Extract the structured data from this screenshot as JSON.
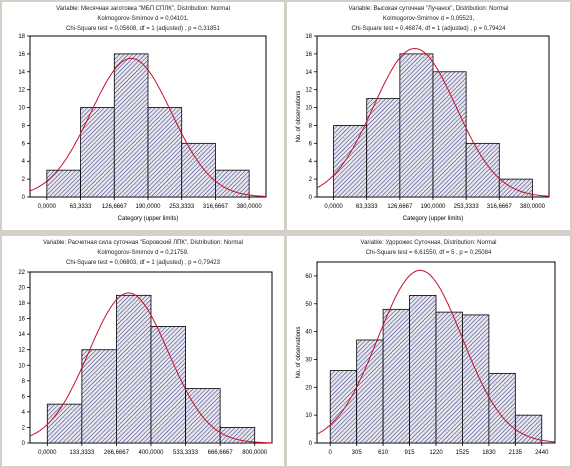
{
  "chart_data": [
    {
      "type": "bar",
      "title": "Variable: Месячная заготовка \"МБП СПЛК\", Distribution: Normal",
      "stats_lines": [
        "Kolmogorov-Smirnov d = 0,04101,",
        "Chi-Square test = 0,05608, df = 1 (adjusted) , p = 0,31851"
      ],
      "xlabel": "Category (upper limits)",
      "ylabel": "",
      "x_ticks": [
        "0,0000",
        "63,3333",
        "126,6667",
        "190,0000",
        "253,3333",
        "316,6667",
        "380,0000"
      ],
      "y_ticks": [
        0,
        2,
        4,
        6,
        8,
        10,
        12,
        14,
        16,
        18
      ],
      "ylim": [
        0,
        18
      ],
      "values": [
        3,
        10,
        16,
        10,
        6,
        3
      ],
      "normal_fit": {
        "mean": 3,
        "sd": 1.2,
        "peak": 15.5
      }
    },
    {
      "type": "bar",
      "title": "Variable: Высокая суточная \"Лучанск\", Distribution: Normal",
      "stats_lines": [
        "Kolmogorov-Smirnov d = 0,05523,",
        "Chi-Square test = 0,46874, df = 1 (adjusted) , p = 0,79424"
      ],
      "xlabel": "Category (upper limits)",
      "ylabel": "No. of observations",
      "x_ticks": [
        "0,0000",
        "63,3333",
        "126,6667",
        "190,0000",
        "253,3333",
        "316,6667",
        "380,0000"
      ],
      "y_ticks": [
        0,
        2,
        4,
        6,
        8,
        10,
        12,
        14,
        16,
        18
      ],
      "ylim": [
        0,
        18
      ],
      "values": [
        8,
        11,
        16,
        14,
        6,
        2
      ],
      "normal_fit": {
        "mean": 2.95,
        "sd": 1.25,
        "peak": 16.6
      }
    },
    {
      "type": "bar",
      "title": "Variable: Расчетная сила суточная \"Боровский ЛПК\", Distribution: Normal",
      "stats_lines": [
        "Kolmogorov-Smirnov d = 0,21759,",
        "Chi-Square test = 0,06803, df = 1 (adjusted) , p = 0,79423"
      ],
      "xlabel": "",
      "ylabel": "",
      "x_ticks": [
        "0,0000",
        "133,3333",
        "266,6667",
        "400,0000",
        "533,3333",
        "666,6667",
        "800,0000"
      ],
      "y_ticks": [
        0,
        2,
        4,
        6,
        8,
        10,
        12,
        14,
        16,
        18,
        20,
        22
      ],
      "ylim": [
        0,
        22
      ],
      "values": [
        5,
        12,
        19,
        15,
        7,
        2
      ],
      "normal_fit": {
        "mean": 2.85,
        "sd": 1.15,
        "peak": 19.3
      }
    },
    {
      "type": "bar",
      "title": "Variable: Удорожес Суточная, Distribution: Normal",
      "stats_lines": [
        "Chi-Square test = 6,61550, df = 5 , p = 0,25084"
      ],
      "xlabel": "",
      "ylabel": "No. of observations",
      "x_ticks": [
        "0",
        "305",
        "610",
        "915",
        "1220",
        "1525",
        "1830",
        "2135",
        "2440"
      ],
      "y_ticks": [
        0,
        10,
        20,
        30,
        40,
        50,
        60
      ],
      "ylim": [
        0,
        65
      ],
      "values": [
        26,
        37,
        48,
        53,
        47,
        46,
        25,
        10
      ],
      "normal_fit": {
        "mean": 3.9,
        "sd": 1.6,
        "peak": 62
      }
    }
  ]
}
